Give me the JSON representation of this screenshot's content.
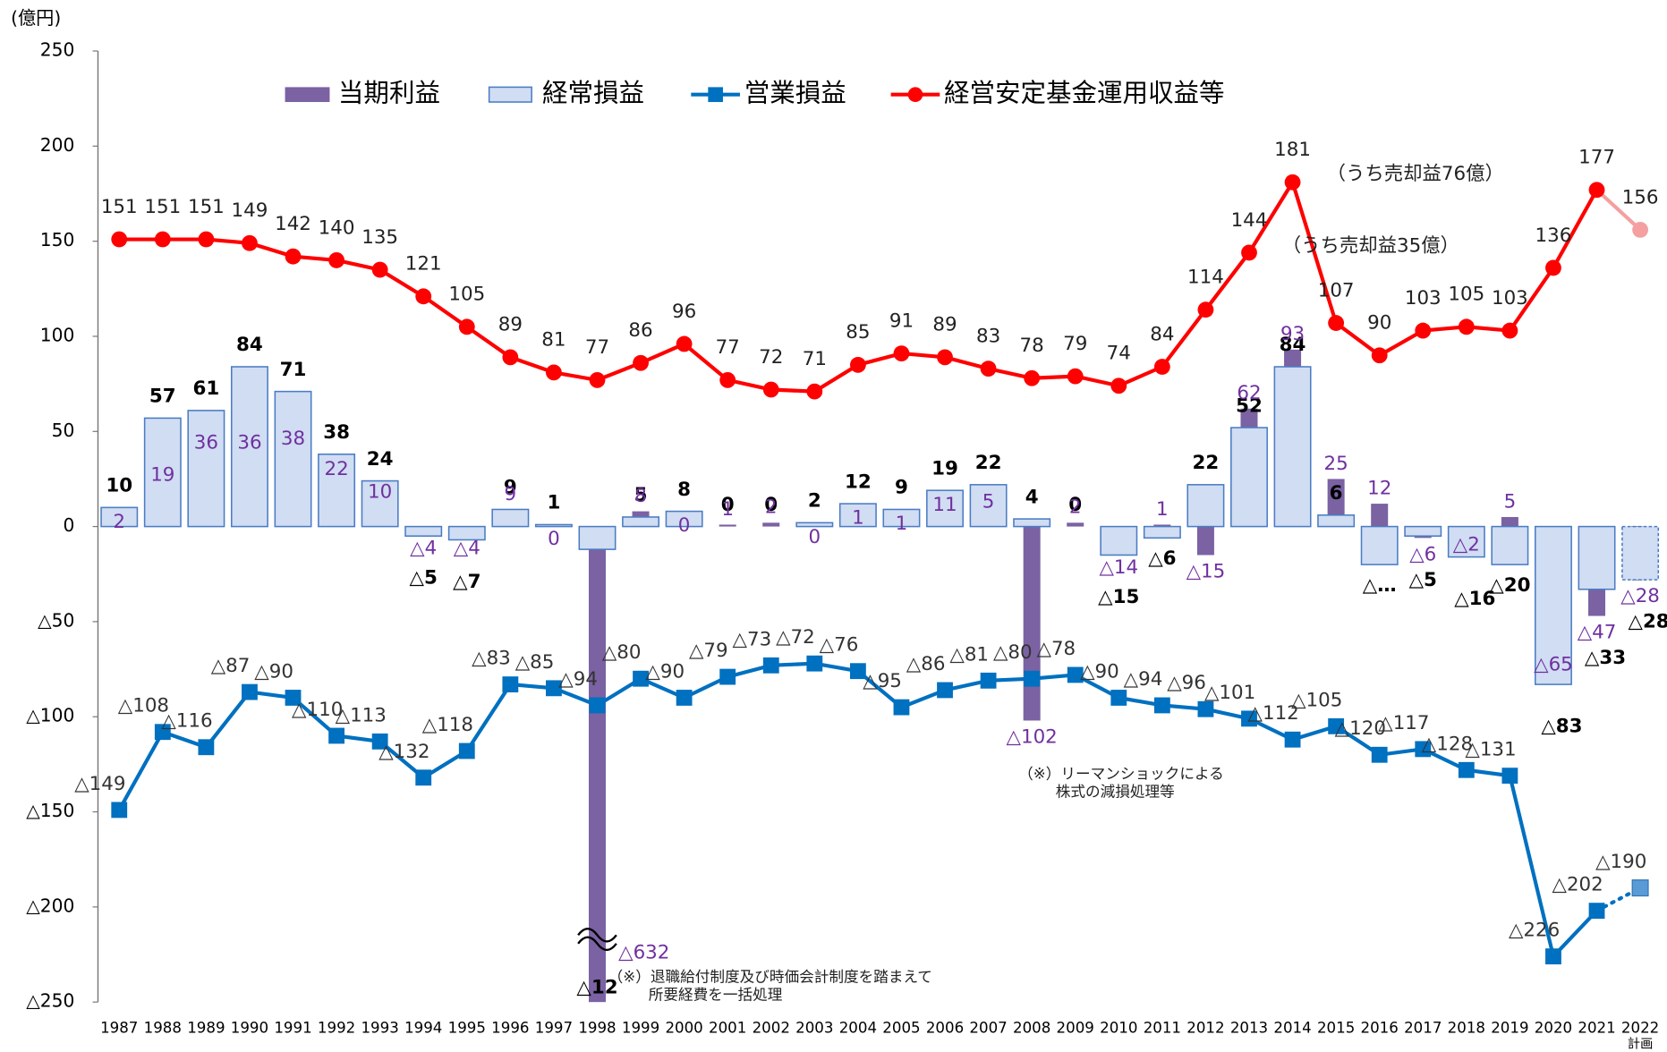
{
  "chart_data": {
    "type": "bar-line",
    "y_unit": "(億円)",
    "plan_label": "計画",
    "categories": [
      "1987",
      "1988",
      "1989",
      "1990",
      "1991",
      "1992",
      "1993",
      "1994",
      "1995",
      "1996",
      "1997",
      "1998",
      "1999",
      "2000",
      "2001",
      "2002",
      "2003",
      "2004",
      "2005",
      "2006",
      "2007",
      "2008",
      "2009",
      "2010",
      "2011",
      "2012",
      "2013",
      "2014",
      "2015",
      "2016",
      "2017",
      "2018",
      "2019",
      "2020",
      "2021",
      "2022"
    ],
    "ylim": [
      -250,
      250
    ],
    "yticks": [
      250,
      200,
      150,
      100,
      50,
      0,
      {
        "value": -50,
        "label": "△50"
      },
      {
        "value": -100,
        "label": "△100"
      },
      {
        "value": -150,
        "label": "△150"
      },
      {
        "value": -200,
        "label": "△200"
      },
      {
        "value": -250,
        "label": "△250"
      }
    ],
    "legend": "top",
    "series": [
      {
        "name": "当期利益",
        "kind": "bar-narrow",
        "color": "#7b62a3",
        "values": [
          2,
          19,
          36,
          36,
          38,
          22,
          10,
          -4,
          -4,
          9,
          0,
          -632,
          8,
          0,
          1,
          2,
          0,
          1,
          1,
          11,
          5,
          -102,
          2,
          -14,
          1,
          -15,
          62,
          93,
          25,
          12,
          -6,
          -2,
          5,
          -65,
          -47,
          -28
        ],
        "value_labels": [
          "2",
          "19",
          "36",
          "36",
          "38",
          "22",
          "10",
          "△4",
          "△4",
          "9",
          "0",
          "△632",
          "8",
          "0",
          "1",
          "2",
          "0",
          "1",
          "1",
          "11",
          "5",
          "△102",
          "2",
          "△14",
          "1",
          "△15",
          "62",
          "93",
          "25",
          "12",
          "△6",
          "△2",
          "5",
          "△65",
          "△47",
          "△28"
        ]
      },
      {
        "name": "経常損益",
        "kind": "bar-wide",
        "color": "#d0ddf2",
        "values": [
          10,
          57,
          61,
          84,
          71,
          38,
          24,
          -5,
          -7,
          9,
          1,
          -12,
          5,
          8,
          0,
          0,
          2,
          12,
          9,
          19,
          22,
          4,
          0,
          -15,
          -6,
          22,
          52,
          84,
          6,
          -20,
          -5,
          -16,
          -20,
          -83,
          -33,
          -28
        ],
        "value_labels": [
          "10",
          "57",
          "61",
          "84",
          "71",
          "38",
          "24",
          "△5",
          "△7",
          "9",
          "1",
          "△12",
          "5",
          "8",
          "0",
          "0",
          "2",
          "12",
          "9",
          "19",
          "22",
          "4",
          "0",
          "△15",
          "△6",
          "22",
          "52",
          "84",
          "6",
          "△…",
          "△5",
          "△16",
          "△20",
          "△83",
          "△33",
          "△28"
        ]
      },
      {
        "name": "営業損益",
        "kind": "line-square",
        "color": "#0070c0",
        "values": [
          -149,
          -108,
          -116,
          -87,
          -90,
          -110,
          -113,
          -132,
          -118,
          -83,
          -85,
          -94,
          -80,
          -90,
          -79,
          -73,
          -72,
          -76,
          -95,
          -86,
          -81,
          -80,
          -78,
          -90,
          -94,
          -96,
          -101,
          -112,
          -105,
          -120,
          -117,
          -128,
          -131,
          -226,
          -202,
          -190
        ],
        "value_labels": [
          "△149",
          "△108",
          "△116",
          "△87",
          "△90",
          "△110",
          "△113",
          "△132",
          "△118",
          "△83",
          "△85",
          "△94",
          "△80",
          "△90",
          "△79",
          "△73",
          "△72",
          "△76",
          "△95",
          "△86",
          "△81",
          "△80",
          "△78",
          "△90",
          "△94",
          "△96",
          "△101",
          "△112",
          "△105",
          "△120",
          "△117",
          "△128",
          "△131",
          "△226",
          "△202",
          "△190"
        ]
      },
      {
        "name": "経営安定基金運用収益等",
        "kind": "line-circle",
        "color": "#ff0000",
        "values": [
          151,
          151,
          151,
          149,
          142,
          140,
          135,
          121,
          105,
          89,
          81,
          77,
          86,
          96,
          77,
          72,
          71,
          85,
          91,
          89,
          83,
          78,
          79,
          74,
          84,
          114,
          144,
          181,
          107,
          90,
          103,
          105,
          103,
          136,
          177,
          156
        ]
      }
    ],
    "annotations": [
      "（うち売却益76億）",
      "（うち売却益35億）",
      "（※）退職給付制度及び時価会計制度を踏まえて",
      "所要経費を一括処理",
      "（※）リーマンショックによる",
      "株式の減損処理等"
    ]
  }
}
